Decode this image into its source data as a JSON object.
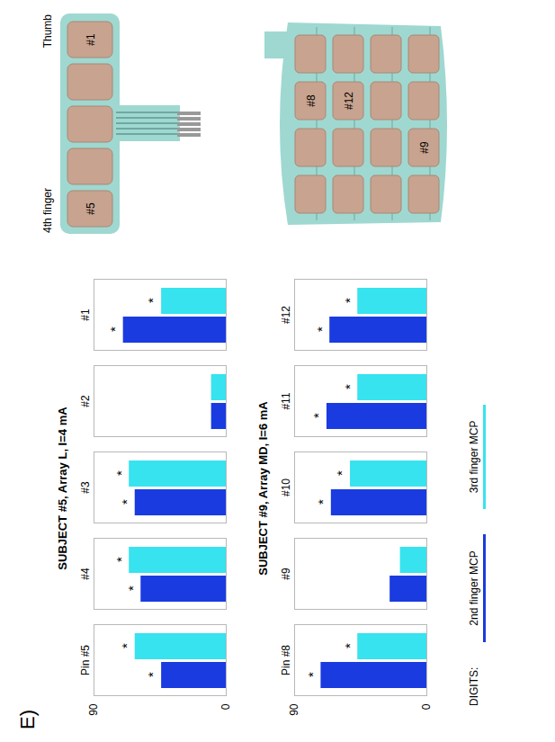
{
  "panel_label": "E)",
  "legend_title": "DIGITS:",
  "chart_data": [
    {
      "type": "bar",
      "title": "SUBJECT #5, Array L, I=4 mA",
      "categories": [
        "Pin #5",
        "#4",
        "#3",
        "#2",
        "#1"
      ],
      "series": [
        {
          "name": "2nd finger MCP",
          "color": "#1a3be0",
          "values": [
            44,
            58,
            62,
            10,
            70
          ],
          "annotations": [
            "*",
            "*",
            "*",
            null,
            "*"
          ]
        },
        {
          "name": "3rd finger MCP",
          "color": "#36e3ef",
          "values": [
            62,
            66,
            66,
            10,
            44
          ],
          "annotations": [
            "*",
            "*",
            "*",
            null,
            "*"
          ]
        }
      ],
      "ylim": [
        0,
        90
      ],
      "yticks": [
        0,
        90
      ]
    },
    {
      "type": "bar",
      "title": "SUBJECT #9, Array MD, I=6 mA",
      "categories": [
        "Pin #8",
        "#9",
        "#10",
        "#11",
        "#12"
      ],
      "series": [
        {
          "name": "2nd finger MCP",
          "color": "#1a3be0",
          "values": [
            72,
            25,
            65,
            68,
            66
          ],
          "annotations": [
            "*",
            null,
            "*",
            "*",
            "*"
          ]
        },
        {
          "name": "3rd finger MCP",
          "color": "#36e3ef",
          "values": [
            47,
            18,
            52,
            47,
            47
          ],
          "annotations": [
            "*",
            null,
            "*",
            "*",
            "*"
          ]
        }
      ],
      "ylim": [
        0,
        90
      ],
      "yticks": [
        0,
        90
      ],
      "legend": "bottom"
    }
  ],
  "arrays": [
    {
      "side_labels": [
        "4th finger",
        "Thumb"
      ],
      "pad_labels": [
        "#5",
        "#1"
      ]
    },
    {
      "pad_labels": [
        "#8",
        "#12",
        "#9"
      ]
    }
  ]
}
